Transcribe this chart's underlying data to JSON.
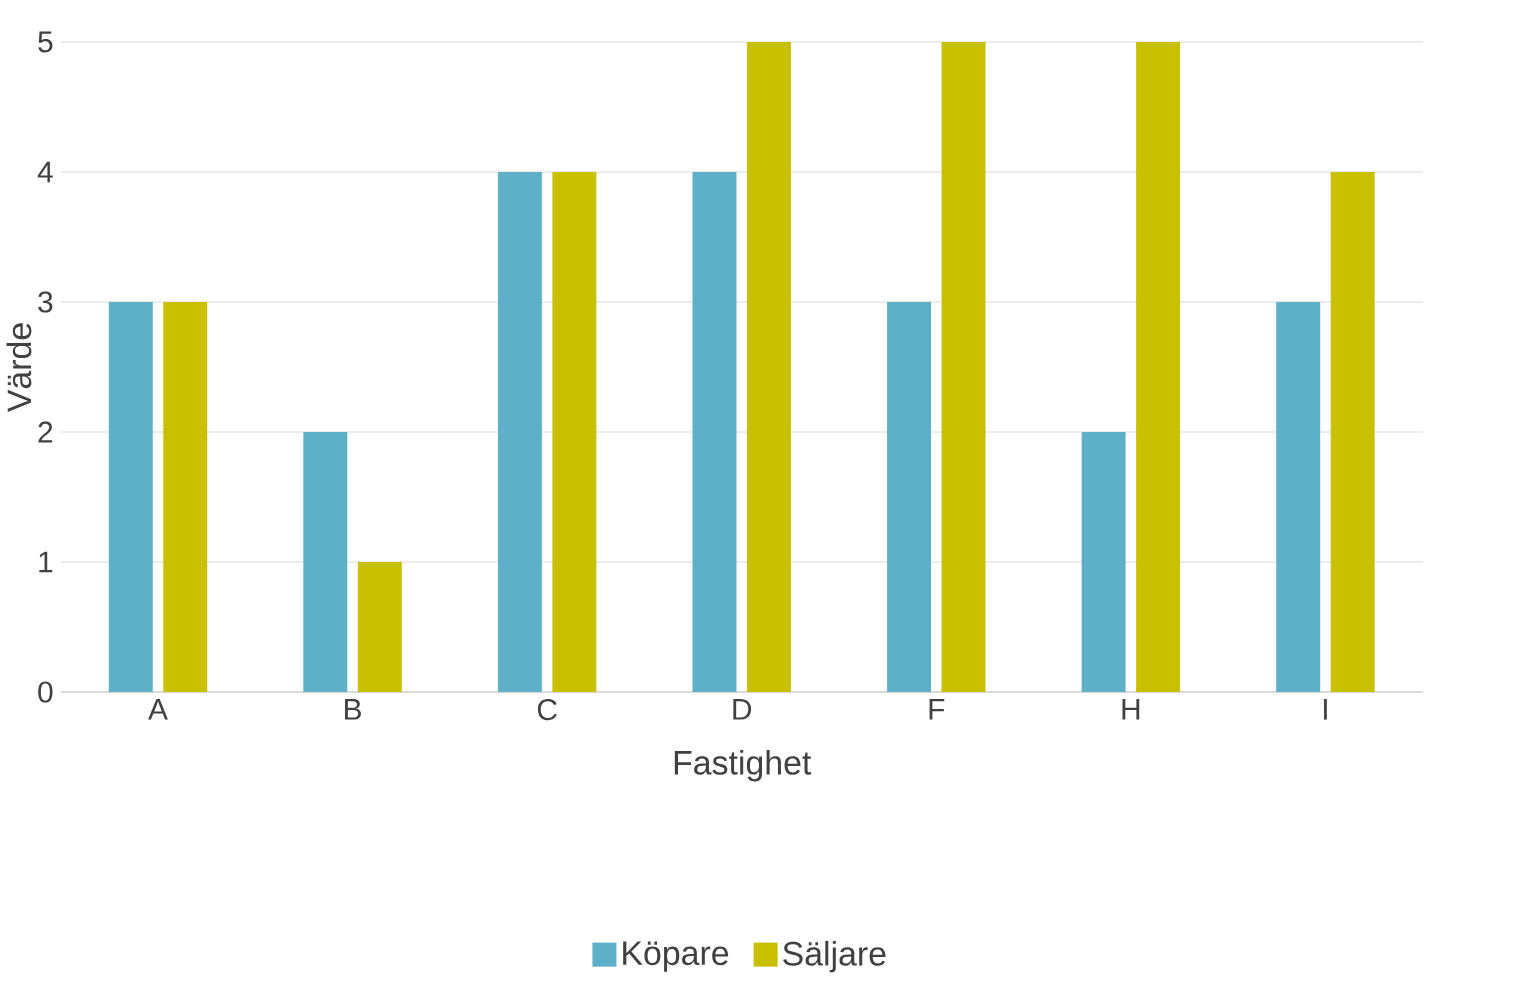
{
  "chart_data": {
    "type": "bar",
    "xlabel": "Fastighet",
    "ylabel": "Värde",
    "categories": [
      "A",
      "B",
      "C",
      "D",
      "F",
      "H",
      "I"
    ],
    "series": [
      {
        "name": "Köpare",
        "color": "#5eb0c8",
        "values": [
          3,
          2,
          4,
          4,
          3,
          2,
          3
        ]
      },
      {
        "name": "Säljare",
        "color": "#c8c000",
        "values": [
          3,
          1,
          4,
          5,
          5,
          5,
          4
        ]
      }
    ],
    "ylim": [
      0,
      5
    ],
    "yticks": [
      0,
      1,
      2,
      3,
      4,
      5
    ],
    "grid": "y",
    "legend": "bottom"
  }
}
